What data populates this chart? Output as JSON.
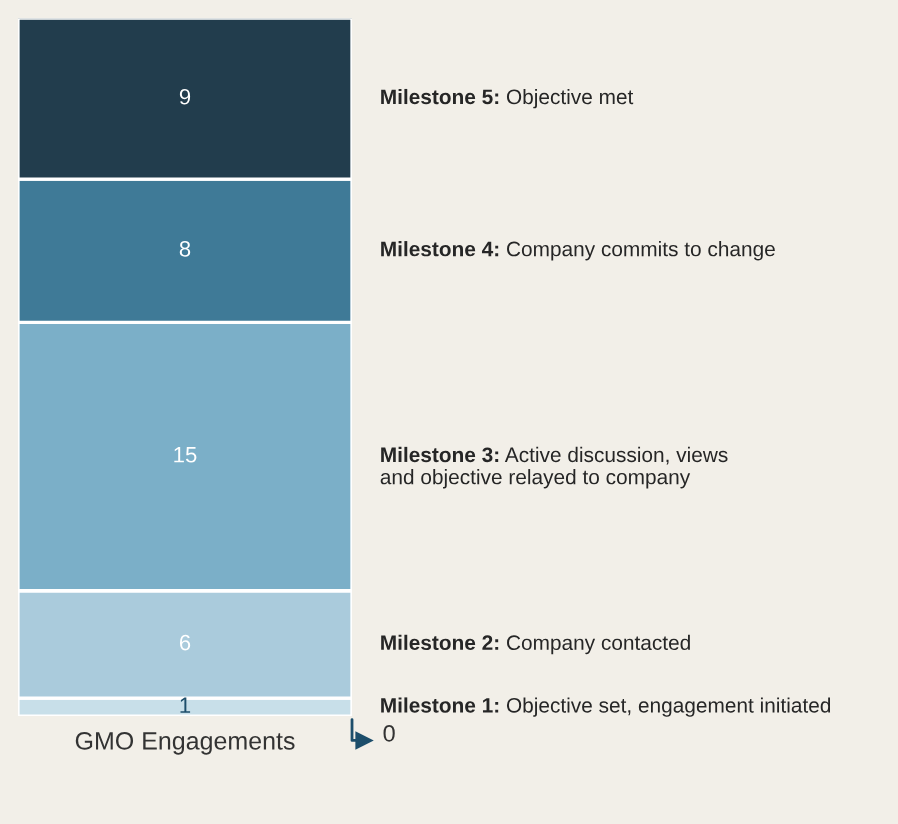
{
  "chart_data": {
    "type": "bar",
    "stacked": true,
    "categories": [
      null
    ],
    "xlabel": "GMO Engagements",
    "annotations": [
      "0"
    ],
    "data_labels": true,
    "series": [
      {
        "name": "Milestone 1: Objective set, engagement initiated",
        "color": "#c8dfe9",
        "values": [
          1
        ]
      },
      {
        "name": "Milestone 2: Company contacted",
        "color": "#aacbdc",
        "values": [
          6
        ]
      },
      {
        "name": "Milestone 3: Active discussion, views\nand objective relayed to company",
        "color": "#7bafc8",
        "values": [
          15
        ]
      },
      {
        "name": "Milestone 4: Company commits to change",
        "color": "#3f7a97",
        "values": [
          8
        ]
      },
      {
        "name": "Milestone 5: Objective met",
        "color": "#223d4d",
        "values": [
          9
        ]
      }
    ]
  }
}
